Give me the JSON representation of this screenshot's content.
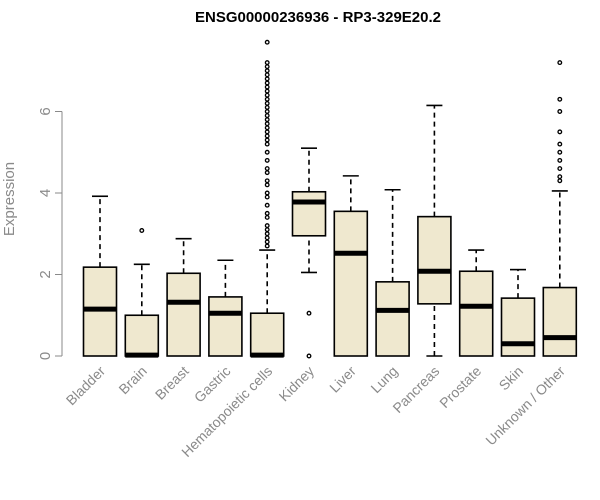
{
  "chart_data": {
    "type": "box",
    "title": "ENSG00000236936 - RP3-329E20.2",
    "xlabel": "",
    "ylabel": "Expression",
    "ylim": [
      0,
      7.5
    ],
    "yticks": [
      0,
      2,
      4,
      6
    ],
    "categories": [
      "Bladder",
      "Brain",
      "Breast",
      "Gastric",
      "Hematopoietic cells",
      "Kidney",
      "Liver",
      "Lung",
      "Pancreas",
      "Prostate",
      "Skin",
      "Unknown / Other"
    ],
    "boxes": [
      {
        "min": 0,
        "q1": 0,
        "median": 1.15,
        "q3": 2.18,
        "max": 3.92,
        "outliers": []
      },
      {
        "min": 0,
        "q1": 0,
        "median": 0.02,
        "q3": 1.0,
        "max": 2.25,
        "outliers": [
          3.08
        ]
      },
      {
        "min": 0,
        "q1": 0,
        "median": 1.32,
        "q3": 2.03,
        "max": 2.88,
        "outliers": []
      },
      {
        "min": 0,
        "q1": 0,
        "median": 1.05,
        "q3": 1.45,
        "max": 2.35,
        "outliers": []
      },
      {
        "min": 0,
        "q1": 0,
        "median": 0.02,
        "q3": 1.05,
        "max": 2.6,
        "outliers": [
          7.7,
          7.2,
          7.1,
          7.0,
          6.9,
          6.8,
          6.7,
          6.6,
          6.5,
          6.4,
          6.3,
          6.2,
          6.1,
          6.0,
          5.9,
          5.8,
          5.7,
          5.6,
          5.5,
          5.4,
          5.3,
          5.2,
          5.0,
          4.8,
          4.6,
          4.5,
          4.3,
          4.2,
          4.0,
          3.9,
          3.7,
          3.5,
          3.4,
          3.2,
          3.1,
          3.0,
          2.9,
          2.8,
          2.7
        ]
      },
      {
        "min": 2.05,
        "q1": 2.95,
        "median": 3.78,
        "q3": 4.03,
        "max": 5.1,
        "outliers": [
          1.05,
          0.0
        ]
      },
      {
        "min": 0,
        "q1": 0,
        "median": 2.52,
        "q3": 3.55,
        "max": 4.42,
        "outliers": []
      },
      {
        "min": 0,
        "q1": 0,
        "median": 1.12,
        "q3": 1.82,
        "max": 4.08,
        "outliers": []
      },
      {
        "min": 0,
        "q1": 1.28,
        "median": 2.08,
        "q3": 3.42,
        "max": 6.15,
        "outliers": []
      },
      {
        "min": 0,
        "q1": 0,
        "median": 1.22,
        "q3": 2.08,
        "max": 2.6,
        "outliers": []
      },
      {
        "min": 0,
        "q1": 0,
        "median": 0.3,
        "q3": 1.42,
        "max": 2.12,
        "outliers": []
      },
      {
        "min": 0,
        "q1": 0,
        "median": 0.45,
        "q3": 1.68,
        "max": 4.05,
        "outliers": [
          7.2,
          6.3,
          6.0,
          5.5,
          5.2,
          5.0,
          4.8,
          4.6,
          4.4,
          4.3
        ]
      }
    ]
  }
}
